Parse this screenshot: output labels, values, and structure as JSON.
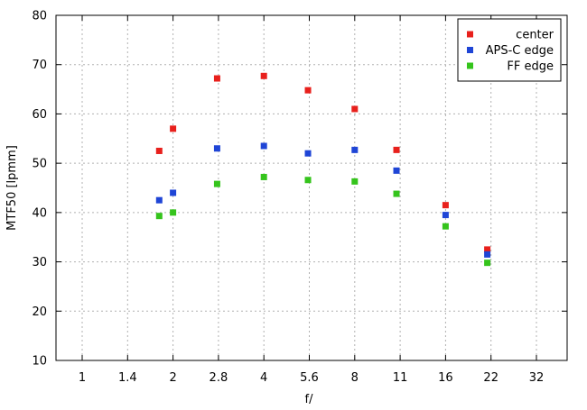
{
  "chart_data": {
    "type": "scatter",
    "xlabel": "f/",
    "ylabel": "MTF50 [lpmm]",
    "categories": [
      "1",
      "1.4",
      "2",
      "2.8",
      "4",
      "5.6",
      "8",
      "11",
      "16",
      "22",
      "32"
    ],
    "x_scale": "log",
    "y_ticks": [
      10,
      20,
      30,
      40,
      50,
      60,
      70,
      80
    ],
    "ylim": [
      10,
      80
    ],
    "grid": true,
    "legend_position": "top-right",
    "series": [
      {
        "name": "center",
        "color": "#e8201c",
        "points": [
          [
            1.8,
            52.5
          ],
          [
            2,
            57
          ],
          [
            2.8,
            67.2
          ],
          [
            4,
            67.7
          ],
          [
            5.6,
            64.8
          ],
          [
            8,
            61
          ],
          [
            11,
            52.7
          ],
          [
            16,
            41.5
          ],
          [
            22,
            32.5
          ]
        ]
      },
      {
        "name": "APS-C edge",
        "color": "#1f45d6",
        "points": [
          [
            1.8,
            42.5
          ],
          [
            2,
            44
          ],
          [
            2.8,
            53
          ],
          [
            4,
            53.5
          ],
          [
            5.6,
            52
          ],
          [
            8,
            52.7
          ],
          [
            11,
            48.5
          ],
          [
            16,
            39.5
          ],
          [
            22,
            31.5
          ]
        ]
      },
      {
        "name": "FF edge",
        "color": "#35c41c",
        "points": [
          [
            1.8,
            39.3
          ],
          [
            2,
            40
          ],
          [
            2.8,
            45.8
          ],
          [
            4,
            47.2
          ],
          [
            5.6,
            46.6
          ],
          [
            8,
            46.3
          ],
          [
            11,
            43.8
          ],
          [
            16,
            37.2
          ],
          [
            22,
            29.8
          ]
        ]
      }
    ]
  }
}
